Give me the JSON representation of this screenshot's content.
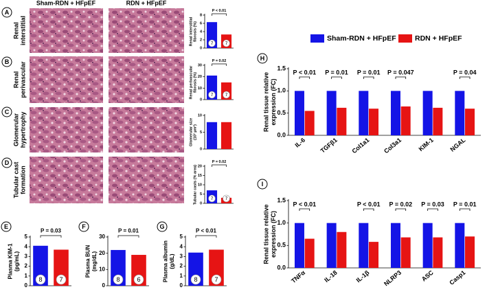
{
  "column_headers": [
    "Sham-RDN + HFpEF",
    "RDN + HFpEF"
  ],
  "chart_data": [
    {
      "type": "bar",
      "panel": "A",
      "row_label": [
        "Renal",
        "interstitial"
      ],
      "ylabel": [
        "Renal interstitial",
        "fibrosis (%)"
      ],
      "values": [
        6.3,
        3.3
      ],
      "colors": [
        "#1414e6",
        "#e61414"
      ],
      "n_labels": [
        7,
        7
      ],
      "p_label": "P < 0.01",
      "ylim": [
        0,
        8
      ],
      "yticks": [
        0,
        2,
        4,
        6,
        8
      ]
    },
    {
      "type": "bar",
      "panel": "B",
      "row_label": [
        "Renal",
        "perivascular"
      ],
      "ylabel": [
        "Renal perivascular",
        "fibrosis (%)"
      ],
      "values": [
        21,
        15
      ],
      "colors": [
        "#1414e6",
        "#e61414"
      ],
      "n_labels": [
        7,
        7
      ],
      "p_label": "P = 0.02",
      "ylim": [
        0,
        30
      ],
      "yticks": [
        0,
        10,
        20,
        30
      ]
    },
    {
      "type": "bar",
      "panel": "C",
      "row_label": [
        "Glomerular",
        "hypertrophy"
      ],
      "ylabel": [
        "Glomerular size",
        "(10³ µm²)"
      ],
      "values": [
        8,
        8
      ],
      "colors": [
        "#1414e6",
        "#e61414"
      ],
      "ylim": [
        0,
        10
      ],
      "yticks": [
        0,
        5,
        10
      ]
    },
    {
      "type": "bar",
      "panel": "D",
      "row_label": [
        "Tubular cast",
        "formation"
      ],
      "ylabel": [
        "Tubular casts (% area)"
      ],
      "values": [
        7,
        3
      ],
      "colors": [
        "#1414e6",
        "#e61414"
      ],
      "n_labels": [
        7,
        7
      ],
      "p_label": "P = 0.02",
      "ylim": [
        0,
        20
      ],
      "yticks": [
        0,
        5,
        10,
        15,
        20
      ]
    },
    {
      "type": "bar",
      "panel": "E",
      "ylabel": [
        "Plasma KIM-1",
        "(pg/mL)"
      ],
      "values": [
        4.1,
        3.7
      ],
      "colors": [
        "#1414e6",
        "#e61414"
      ],
      "n_labels": [
        8,
        7
      ],
      "p_label": "P = 0.03",
      "ylim": [
        0,
        5
      ],
      "yticks": [
        0,
        1,
        2,
        3,
        4,
        5
      ]
    },
    {
      "type": "bar",
      "panel": "F",
      "ylabel": [
        "Plasma BUN",
        "(mg/dL)"
      ],
      "values": [
        22,
        19
      ],
      "colors": [
        "#1414e6",
        "#e61414"
      ],
      "n_labels": [
        8,
        6
      ],
      "p_label": "P = 0.01",
      "ylim": [
        0,
        30
      ],
      "yticks": [
        0,
        10,
        20,
        30
      ]
    },
    {
      "type": "bar",
      "panel": "G",
      "ylabel": [
        "Plasma albumin",
        "(g/dL)"
      ],
      "values": [
        3.4,
        3.7
      ],
      "colors": [
        "#1414e6",
        "#e61414"
      ],
      "n_labels": [
        8,
        7
      ],
      "p_label": "P < 0.01",
      "ylim": [
        0,
        5
      ],
      "yticks": [
        0,
        1,
        2,
        3,
        4,
        5
      ]
    },
    {
      "type": "grouped_bar",
      "panel": "H",
      "ylabel": [
        "Renal tissue relative",
        "expression (FC)"
      ],
      "legend": true,
      "categories": [
        "IL-6",
        "TGFβ1",
        "Col1a1",
        "Col3a1",
        "KIM-1",
        "NGAL"
      ],
      "series": [
        {
          "name": "Sham-RDN + HFpEF",
          "color": "#1414e6",
          "values": [
            1.0,
            1.0,
            1.0,
            1.0,
            1.0,
            1.0
          ]
        },
        {
          "name": "RDN + HFpEF",
          "color": "#e61414",
          "values": [
            0.55,
            0.62,
            0.6,
            0.65,
            0.62,
            0.6
          ]
        }
      ],
      "p_labels": [
        "P < 0.01",
        "P = 0.01",
        "P = 0.01",
        "P = 0.047",
        null,
        "P = 0.04"
      ],
      "ylim": [
        0,
        1.5
      ],
      "yticks": [
        {
          "value": 0,
          "label": "0.0"
        },
        {
          "value": 0.5,
          "label": "0.5"
        },
        {
          "value": 1,
          "label": "1.0"
        },
        {
          "value": 1.5,
          "label": "1.5"
        }
      ]
    },
    {
      "type": "grouped_bar",
      "panel": "I",
      "ylabel": [
        "Renal  tissue relative",
        "expression (FC)"
      ],
      "categories": [
        "TNFα",
        "IL-18",
        "IL-1β",
        "NLRP3",
        "ASC",
        "Casp1"
      ],
      "series": [
        {
          "color": "#1414e6",
          "values": [
            1.0,
            1.0,
            1.0,
            1.0,
            1.0,
            1.0
          ]
        },
        {
          "color": "#e61414",
          "values": [
            0.65,
            0.8,
            0.58,
            0.68,
            0.68,
            0.7
          ]
        }
      ],
      "p_labels": [
        "P < 0.01",
        null,
        "P < 0.01",
        "P = 0.02",
        "P = 0.03",
        "P = 0.01"
      ],
      "ylim": [
        0,
        1.5
      ],
      "yticks": [
        {
          "value": 0,
          "label": "0.0"
        },
        {
          "value": 0.5,
          "label": "0.5"
        },
        {
          "value": 1,
          "label": "1.0"
        },
        {
          "value": 1.5,
          "label": "1.5"
        }
      ]
    }
  ]
}
